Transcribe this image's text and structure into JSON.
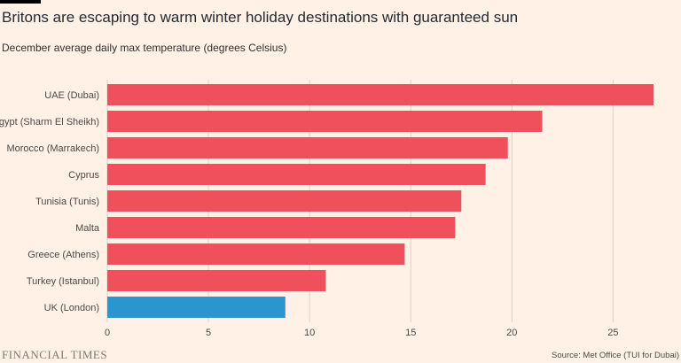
{
  "header": {
    "title": "Britons are escaping to warm winter holiday destinations with guaranteed sun",
    "subtitle": "December average daily max temperature (degrees Celsius)"
  },
  "footer": {
    "logo_text": "FINANCIAL TIMES",
    "source": "Source: Met Office (TUI for Dubai)"
  },
  "colors": {
    "background": "#fff1e5",
    "bar_default": "#f04f5c",
    "bar_highlight": "#2b95d0",
    "gridline": "#d9d2cb",
    "tick_text": "#4d4845"
  },
  "chart_data": {
    "type": "bar",
    "orientation": "horizontal",
    "categories": [
      "UAE (Dubai)",
      "Egypt (Sharm El Sheikh)",
      "Morocco (Marrakech)",
      "Cyprus",
      "Tunisia (Tunis)",
      "Malta",
      "Greece (Athens)",
      "Turkey (Istanbul)",
      "UK (London)"
    ],
    "values": [
      27,
      21.5,
      19.8,
      18.7,
      17.5,
      17.2,
      14.7,
      10.8,
      8.8
    ],
    "highlight": "UK (London)",
    "xlim": [
      0,
      27
    ],
    "xticks": [
      0,
      5,
      10,
      15,
      20,
      25
    ],
    "grid": true,
    "xlabel": "",
    "ylabel": ""
  }
}
